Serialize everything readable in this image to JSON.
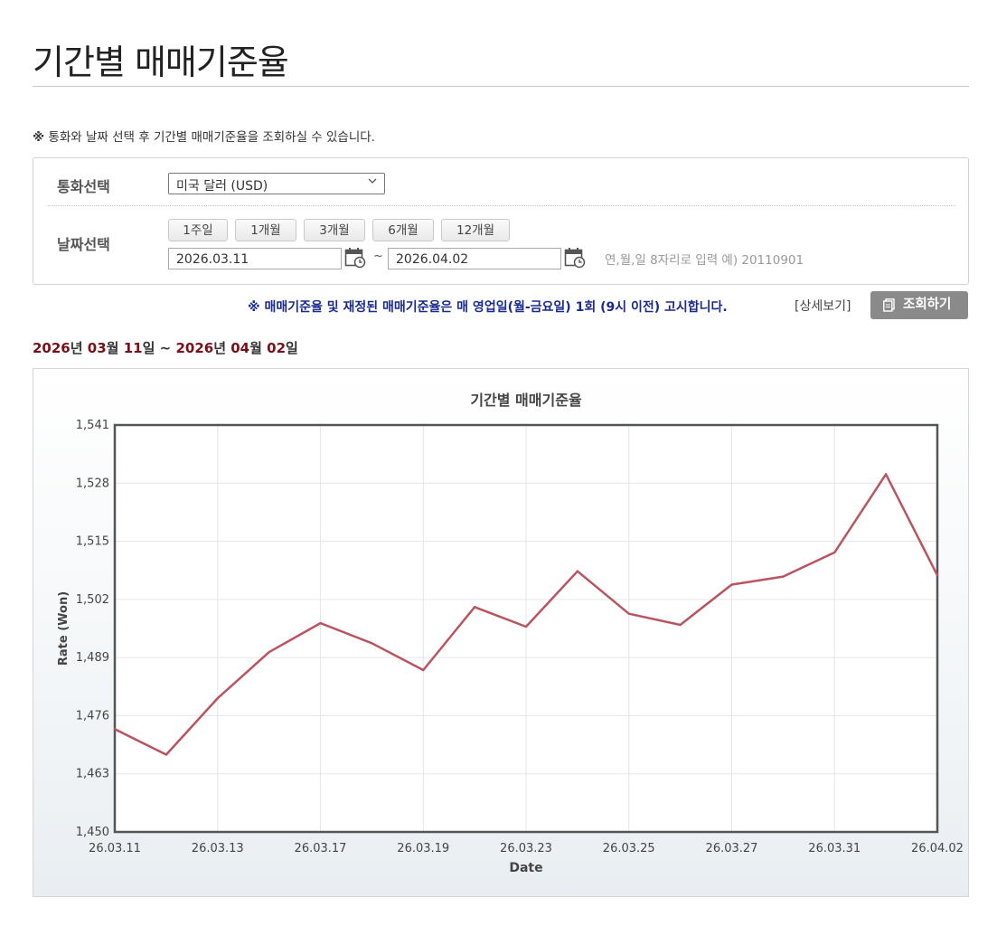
{
  "page": {
    "title": "기간별 매매기준율",
    "notice_mark": "※",
    "notice": "통화와 날짜 선택 후 기간별 매매기준율을 조회하실 수 있습니다."
  },
  "filter": {
    "currency_label": "통화선택",
    "currency_value": "미국 달러 (USD)",
    "date_label": "날짜선택",
    "period_buttons": [
      "1주일",
      "1개월",
      "3개월",
      "6개월",
      "12개월"
    ],
    "start_date": "2026.03.11",
    "tilde": "~",
    "end_date": "2026.04.02",
    "hint": "연,월,일 8자리로 입력 예) 20110901"
  },
  "actions": {
    "blue_notice": "※ 매매기준율 및 재정된 매매기준율은 매 영업일(월-금요일) 1회 (9시 이전) 고시합니다.",
    "detail_link": "[상세보기]",
    "search_button": "조회하기"
  },
  "range": {
    "start_year": "2026",
    "y": "년",
    "start_month": "03",
    "m": "월",
    "start_day": "11",
    "d": "일",
    "sep": "~",
    "end_year": "2026",
    "end_month": "04",
    "end_day": "02"
  },
  "colors": {
    "line": "#b85560",
    "frame": "#555555",
    "accent_text": "#7a0f18",
    "notice_blue": "#1a2a8f"
  },
  "chart_data": {
    "type": "line",
    "title": "기간별 매매기준율",
    "xlabel": "Date",
    "ylabel": "Rate (Won)",
    "ylim": [
      1450,
      1541
    ],
    "yticks": [
      1450,
      1463,
      1476,
      1489,
      1502,
      1515,
      1528,
      1541
    ],
    "ytick_labels": [
      "1,450",
      "1,463",
      "1,476",
      "1,489",
      "1,502",
      "1,515",
      "1,528",
      "1,541"
    ],
    "x": [
      "26.03.11",
      "26.03.12",
      "26.03.13",
      "26.03.16",
      "26.03.17",
      "26.03.18",
      "26.03.19",
      "26.03.20",
      "26.03.23",
      "26.03.24",
      "26.03.25",
      "26.03.26",
      "26.03.27",
      "26.03.30",
      "26.03.31",
      "26.04.01",
      "26.04.02"
    ],
    "xtick_labels": [
      "26.03.11",
      "26.03.13",
      "26.03.17",
      "26.03.19",
      "26.03.23",
      "26.03.25",
      "26.03.27",
      "26.03.31",
      "26.04.02"
    ],
    "series": [
      {
        "values": [
          1473.0,
          1467.3,
          1479.9,
          1490.2,
          1496.7,
          1492.2,
          1486.2,
          1500.3,
          1495.9,
          1508.3,
          1498.8,
          1496.3,
          1505.3,
          1507.1,
          1512.5,
          1530.0,
          1507.4
        ]
      }
    ],
    "grid": true
  }
}
